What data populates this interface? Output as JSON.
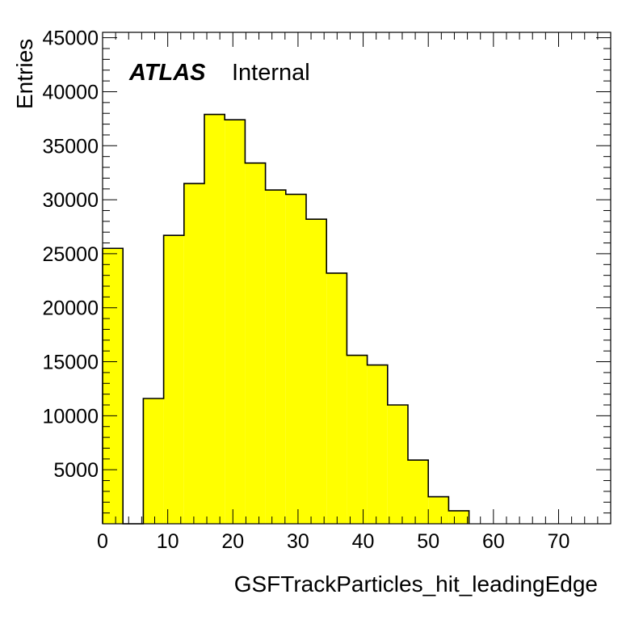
{
  "chart_data": {
    "type": "bar",
    "histogram": true,
    "xlabel": "GSFTrackParticles_hit_leadingEdge",
    "ylabel": "Entries",
    "xlim": [
      0,
      78
    ],
    "ylim": [
      0,
      45500
    ],
    "xticks": [
      0,
      10,
      20,
      30,
      40,
      50,
      60,
      70
    ],
    "yticks": [
      5000,
      10000,
      15000,
      20000,
      25000,
      30000,
      35000,
      40000,
      45000
    ],
    "bin_width": 3.125,
    "bins": [
      {
        "x_low": 0.0,
        "x_high": 3.125,
        "value": 25500
      },
      {
        "x_low": 3.125,
        "x_high": 6.25,
        "value": 0
      },
      {
        "x_low": 6.25,
        "x_high": 9.375,
        "value": 11600
      },
      {
        "x_low": 9.375,
        "x_high": 12.5,
        "value": 26700
      },
      {
        "x_low": 12.5,
        "x_high": 15.625,
        "value": 31500
      },
      {
        "x_low": 15.625,
        "x_high": 18.75,
        "value": 37900
      },
      {
        "x_low": 18.75,
        "x_high": 21.875,
        "value": 37400
      },
      {
        "x_low": 21.875,
        "x_high": 25.0,
        "value": 33400
      },
      {
        "x_low": 25.0,
        "x_high": 28.125,
        "value": 30900
      },
      {
        "x_low": 28.125,
        "x_high": 31.25,
        "value": 30500
      },
      {
        "x_low": 31.25,
        "x_high": 34.375,
        "value": 28200
      },
      {
        "x_low": 34.375,
        "x_high": 37.5,
        "value": 23200
      },
      {
        "x_low": 37.5,
        "x_high": 40.625,
        "value": 15600
      },
      {
        "x_low": 40.625,
        "x_high": 43.75,
        "value": 14700
      },
      {
        "x_low": 43.75,
        "x_high": 46.875,
        "value": 11000
      },
      {
        "x_low": 46.875,
        "x_high": 50.0,
        "value": 5900
      },
      {
        "x_low": 50.0,
        "x_high": 53.125,
        "value": 2500
      },
      {
        "x_low": 53.125,
        "x_high": 56.25,
        "value": 1200
      }
    ],
    "fill_color": "#ffff00",
    "line_color": "#000000",
    "grid": false,
    "legend": "none"
  },
  "label": {
    "atlas": "ATLAS",
    "status": "Internal"
  }
}
